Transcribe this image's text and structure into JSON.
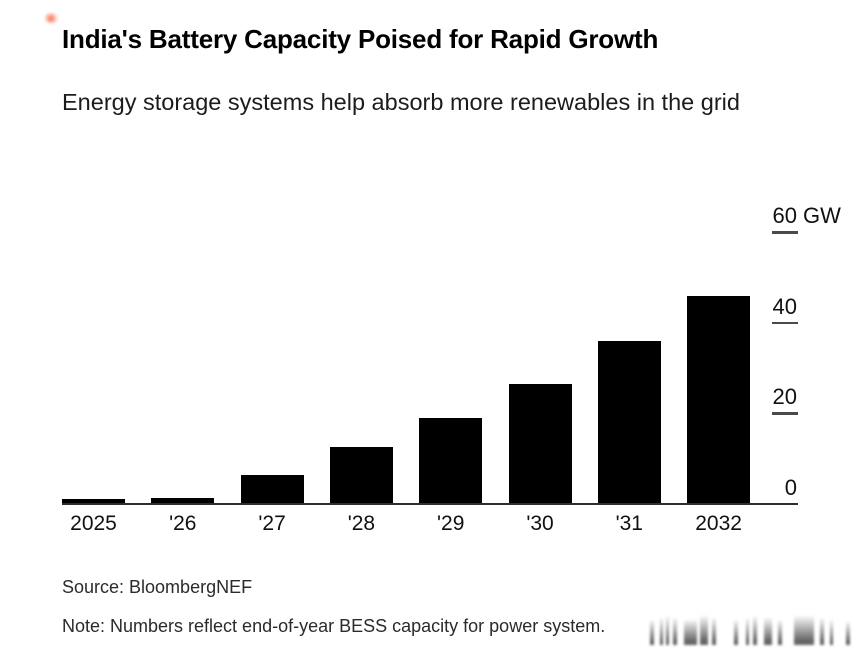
{
  "page": {
    "background": "#ffffff",
    "accent_mark_color": "#fc4826"
  },
  "header": {
    "title": "India's Battery Capacity Poised for Rapid Growth",
    "subtitle": "Energy storage systems help absorb more renewables in the grid"
  },
  "chart_data": {
    "type": "bar",
    "title": "India's Battery Capacity Poised for Rapid Growth",
    "subtitle": "Energy storage systems help absorb more renewables in the grid",
    "categories": [
      "2025",
      "'26",
      "'27",
      "'28",
      "'29",
      "'30",
      "'31",
      "2032"
    ],
    "values": [
      1,
      1.4,
      6.3,
      12.5,
      19,
      26.6,
      36,
      46
    ],
    "unit": "GW",
    "xlabel": "",
    "ylabel": "GW",
    "ylim": [
      0,
      60
    ],
    "yticks": [
      {
        "value": 60,
        "label": "60",
        "suffix": " GW",
        "dash": true
      },
      {
        "value": 40,
        "label": "40",
        "suffix": "",
        "dash": true
      },
      {
        "value": 20,
        "label": "20",
        "suffix": "",
        "dash": true
      },
      {
        "value": 0,
        "label": "0",
        "suffix": "",
        "dash": false
      }
    ],
    "bar_color": "#000000",
    "axis_color": "#2e2e2e",
    "grid": false,
    "legend": null
  },
  "footer": {
    "source": "Source: BloombergNEF",
    "note": "Note: Numbers reflect end-of-year BESS capacity for power system."
  }
}
